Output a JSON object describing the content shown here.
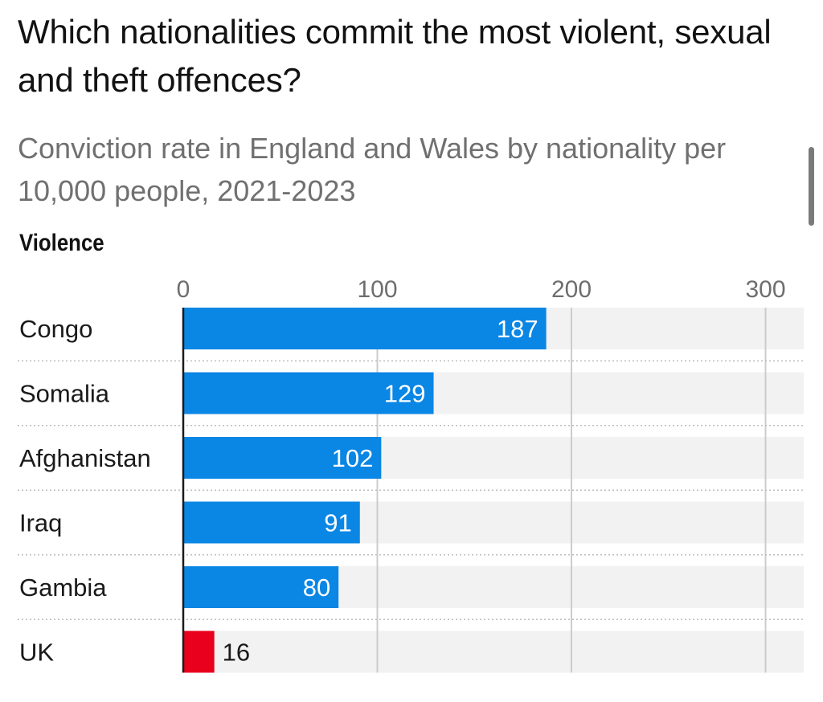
{
  "header": {
    "title": "Which nationalities commit the most violent, sexual and theft offences?",
    "subtitle": "Conviction rate in England and Wales by nationality per 10,000 people, 2021-2023",
    "section_label": "Violence"
  },
  "colors": {
    "bar_default": "#0a86e4",
    "bar_highlight": "#e8001c",
    "track": "#f2f2f2",
    "grid": "#cccccc",
    "text": "#1a1a1a",
    "axis_text": "#6e6e6e"
  },
  "chart_data": {
    "type": "bar",
    "orientation": "horizontal",
    "title": "Violence",
    "categories": [
      "Congo",
      "Somalia",
      "Afghanistan",
      "Iraq",
      "Gambia",
      "UK"
    ],
    "values": [
      187,
      129,
      102,
      91,
      80,
      16
    ],
    "value_labels": [
      "187",
      "129",
      "102",
      "91",
      "80",
      "16"
    ],
    "highlight": [
      "UK"
    ],
    "xlim": [
      0,
      320
    ],
    "ticks": [
      0,
      100,
      200,
      300
    ],
    "tick_labels": [
      "0",
      "100",
      "200",
      "300"
    ],
    "grid": true
  }
}
